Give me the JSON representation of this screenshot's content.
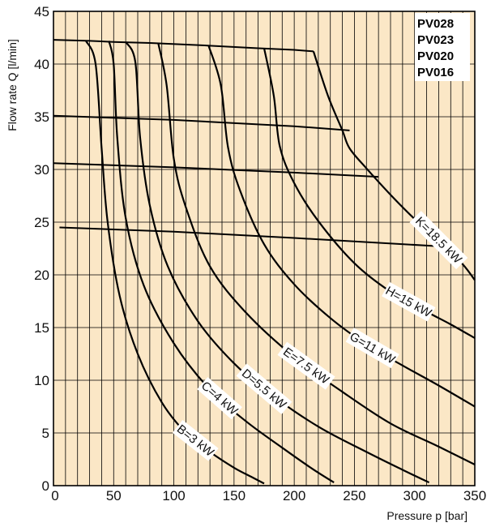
{
  "chart_data": {
    "type": "line",
    "xlabel": "Pressure p [bar]",
    "ylabel": "Flow rate Q [l/min]",
    "xlim": [
      0,
      350
    ],
    "ylim": [
      0,
      45
    ],
    "x_ticks": [
      "0",
      "50",
      "100",
      "150",
      "200",
      "250",
      "300",
      "350"
    ],
    "y_ticks": [
      "0",
      "5",
      "10",
      "15",
      "20",
      "25",
      "30",
      "35",
      "40",
      "45"
    ],
    "grid": true,
    "colors": {
      "background": "#fbe7c6",
      "line": "#000000",
      "grid": "#000000"
    },
    "models": [
      "PV028",
      "PV023",
      "PV020",
      "PV016"
    ],
    "model_lines": [
      {
        "name": "PV028",
        "x": [
          0,
          15,
          30,
          50,
          80,
          120,
          170,
          200,
          216
        ],
        "y": [
          42.3,
          42.25,
          42.2,
          42.1,
          42.0,
          41.8,
          41.5,
          41.35,
          41.2
        ]
      },
      {
        "name": "PV023",
        "x": [
          0,
          100,
          200,
          246
        ],
        "y": [
          35.1,
          34.7,
          34.1,
          33.7
        ]
      },
      {
        "name": "PV020",
        "x": [
          0,
          100,
          200,
          270
        ],
        "y": [
          30.6,
          30.2,
          29.7,
          29.3
        ]
      },
      {
        "name": "PV016",
        "x": [
          5,
          100,
          200,
          322
        ],
        "y": [
          24.5,
          24.1,
          23.5,
          22.7
        ]
      }
    ],
    "series": [
      {
        "name": "B=3 kW",
        "label": "B=3 kW",
        "x": [
          27,
          35,
          40,
          45,
          55,
          70,
          90,
          110,
          130,
          150,
          165,
          175
        ],
        "y": [
          42.2,
          40,
          32,
          25,
          18,
          12.5,
          7.9,
          5,
          3.2,
          1.7,
          0.8,
          0.2
        ]
      },
      {
        "name": "C=4 kW",
        "label": "C=4 kW",
        "x": [
          46,
          50,
          53,
          60,
          75,
          100,
          130,
          160,
          190,
          215,
          233
        ],
        "y": [
          42.2,
          40,
          33,
          25.4,
          19,
          13.5,
          9.1,
          6.1,
          3.6,
          1.6,
          0.3
        ]
      },
      {
        "name": "D=5.5 kW",
        "label": "D=5.5 kW",
        "x": [
          60,
          68,
          72,
          80,
          95,
          120,
          150,
          180,
          220,
          260,
          290,
          312
        ],
        "y": [
          42.1,
          40.2,
          33,
          26.6,
          20.8,
          15.6,
          11.6,
          8.7,
          5.6,
          3.2,
          1.5,
          0.3
        ]
      },
      {
        "name": "E=7.5 kW",
        "label": "E=7.5 kW",
        "x": [
          87,
          94,
          100,
          110,
          130,
          160,
          200,
          240,
          280,
          320,
          350
        ],
        "y": [
          42,
          38,
          31,
          26.4,
          20.8,
          16.4,
          12.2,
          8.9,
          5.9,
          3.7,
          2
        ]
      },
      {
        "name": "G=11 kW",
        "label": "G=11 kW",
        "x": [
          129,
          139,
          145,
          155,
          175,
          200,
          230,
          260,
          290,
          320,
          350
        ],
        "y": [
          41.7,
          38,
          32.1,
          28,
          22.9,
          19.1,
          15.9,
          13.4,
          11.4,
          9.5,
          7.5
        ]
      },
      {
        "name": "H=15 kW",
        "label": "H=15 kW",
        "x": [
          175,
          183,
          188,
          200,
          220,
          250,
          280,
          310,
          330,
          350
        ],
        "y": [
          41.5,
          37,
          32.2,
          28.7,
          25.1,
          21.1,
          18.4,
          16.5,
          15.3,
          14
        ]
      },
      {
        "name": "K=18.5 kW",
        "label": "K=18.5 kW",
        "x": [
          216,
          228,
          240,
          246,
          260,
          280,
          300,
          320,
          340,
          350
        ],
        "y": [
          41.2,
          37,
          33.7,
          32,
          30.1,
          27.6,
          25.3,
          23.3,
          21,
          19.5
        ]
      }
    ]
  }
}
